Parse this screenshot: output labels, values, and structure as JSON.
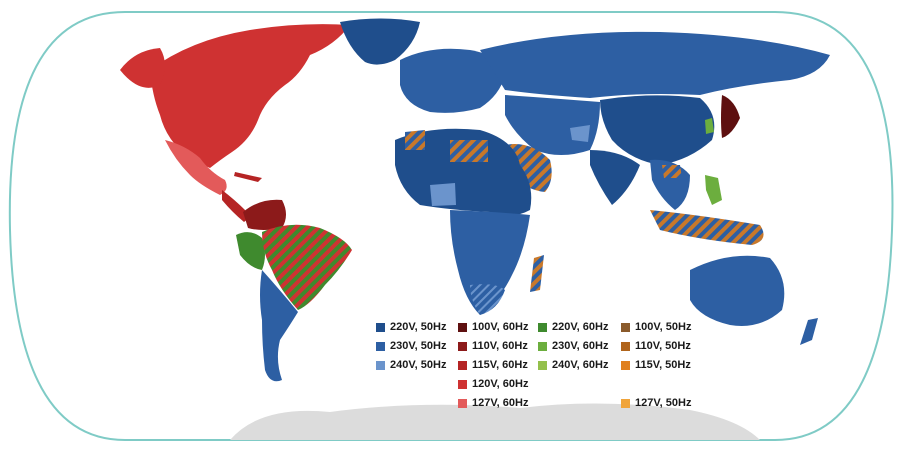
{
  "colors": {
    "ocean_border": "#7fcbc6",
    "antarctica": "#dcdcdc",
    "v220_50": "#1f4e8c",
    "v230_50": "#2d5fa3",
    "v240_50": "#6b94cc",
    "v100_60": "#5e1010",
    "v110_60": "#8c1a1a",
    "v115_60": "#b52424",
    "v120_60": "#cf3232",
    "v127_60": "#e35a5a",
    "v220_60": "#3f8a2e",
    "v230_60": "#6cae3e",
    "v240_60": "#94c04c",
    "v100_50": "#8a5a2b",
    "v110_50": "#b0641c",
    "v115_50": "#e0801e",
    "v127_50": "#f0a43a"
  },
  "legend": [
    {
      "label": "220V, 50Hz",
      "color": "#1f4e8c",
      "col": 0,
      "row": 0
    },
    {
      "label": "230V, 50Hz",
      "color": "#2d5fa3",
      "col": 0,
      "row": 1
    },
    {
      "label": "240V, 50Hz",
      "color": "#6b94cc",
      "col": 0,
      "row": 2
    },
    {
      "label": "100V, 60Hz",
      "color": "#5e1010",
      "col": 1,
      "row": 0
    },
    {
      "label": "110V, 60Hz",
      "color": "#8c1a1a",
      "col": 1,
      "row": 1
    },
    {
      "label": "115V, 60Hz",
      "color": "#b52424",
      "col": 1,
      "row": 2
    },
    {
      "label": "120V, 60Hz",
      "color": "#cf3232",
      "col": 1,
      "row": 3
    },
    {
      "label": "127V, 60Hz",
      "color": "#e35a5a",
      "col": 1,
      "row": 4
    },
    {
      "label": "220V, 60Hz",
      "color": "#3f8a2e",
      "col": 2,
      "row": 0
    },
    {
      "label": "230V, 60Hz",
      "color": "#6cae3e",
      "col": 2,
      "row": 1
    },
    {
      "label": "240V, 60Hz",
      "color": "#94c04c",
      "col": 2,
      "row": 2
    },
    {
      "label": "100V, 50Hz",
      "color": "#8a5a2b",
      "col": 3,
      "row": 0
    },
    {
      "label": "110V, 50Hz",
      "color": "#b0641c",
      "col": 3,
      "row": 1
    },
    {
      "label": "115V, 50Hz",
      "color": "#e0801e",
      "col": 3,
      "row": 2
    },
    {
      "label": "127V, 50Hz",
      "color": "#f0a43a",
      "col": 3,
      "row": 4
    }
  ]
}
